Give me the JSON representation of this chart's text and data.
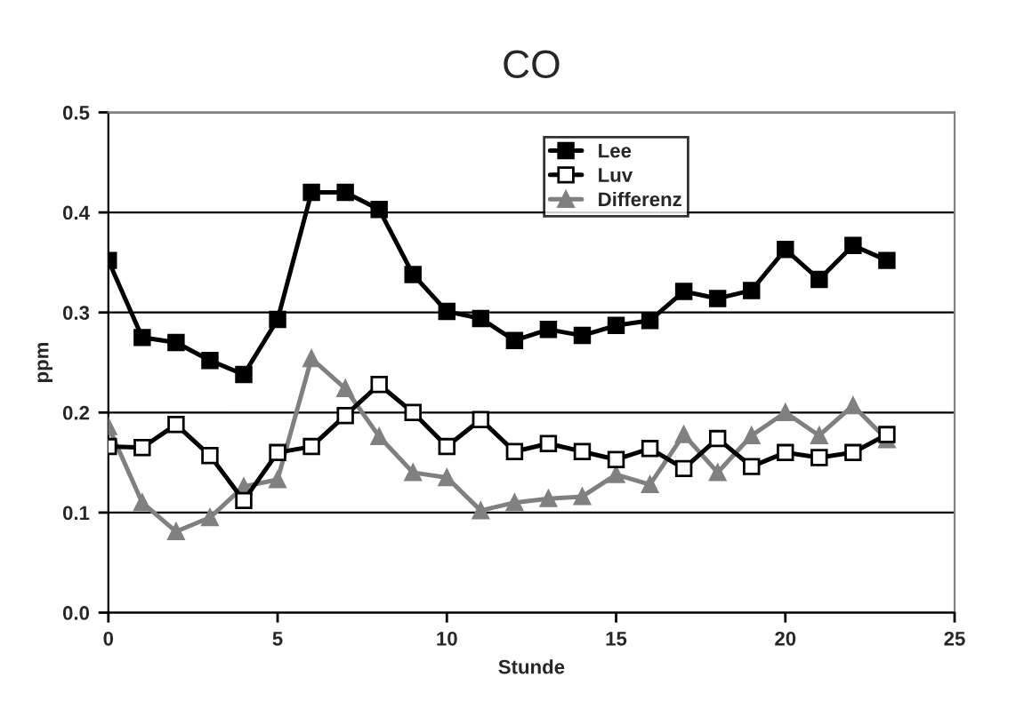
{
  "chart_data": {
    "type": "line",
    "title": "CO",
    "xlabel": "Stunde",
    "ylabel": "ppm",
    "x": [
      0,
      1,
      2,
      3,
      4,
      5,
      6,
      7,
      8,
      9,
      10,
      11,
      12,
      13,
      14,
      15,
      16,
      17,
      18,
      19,
      20,
      21,
      22,
      23
    ],
    "series": [
      {
        "name": "Lee",
        "color": "#000000",
        "marker": "square",
        "values": [
          0.352,
          0.275,
          0.27,
          0.252,
          0.238,
          0.293,
          0.42,
          0.42,
          0.403,
          0.338,
          0.301,
          0.294,
          0.272,
          0.283,
          0.277,
          0.287,
          0.292,
          0.321,
          0.314,
          0.322,
          0.363,
          0.333,
          0.367,
          0.352
        ]
      },
      {
        "name": "Luv",
        "color": "#000000",
        "marker": "square",
        "values": [
          0.166,
          0.165,
          0.188,
          0.157,
          0.112,
          0.16,
          0.166,
          0.197,
          0.228,
          0.2,
          0.166,
          0.193,
          0.161,
          0.169,
          0.161,
          0.153,
          0.164,
          0.144,
          0.174,
          0.146,
          0.16,
          0.155,
          0.16,
          0.178
        ]
      },
      {
        "name": "Differenz",
        "color": "#808080",
        "marker": "triangle",
        "values": [
          0.186,
          0.11,
          0.081,
          0.095,
          0.126,
          0.133,
          0.254,
          0.224,
          0.176,
          0.14,
          0.135,
          0.102,
          0.11,
          0.114,
          0.116,
          0.138,
          0.128,
          0.178,
          0.14,
          0.177,
          0.2,
          0.177,
          0.207,
          0.173
        ]
      }
    ],
    "xlim": [
      0,
      25
    ],
    "xticks": [
      0,
      5,
      10,
      15,
      20,
      25
    ],
    "ylim": [
      0,
      0.5
    ],
    "yticks": [
      {
        "value": 0,
        "label": "0.0"
      },
      0.1,
      0.2,
      0.3,
      0.4,
      0.5
    ],
    "grid": "y",
    "legend": "top",
    "line_style": "solid"
  }
}
